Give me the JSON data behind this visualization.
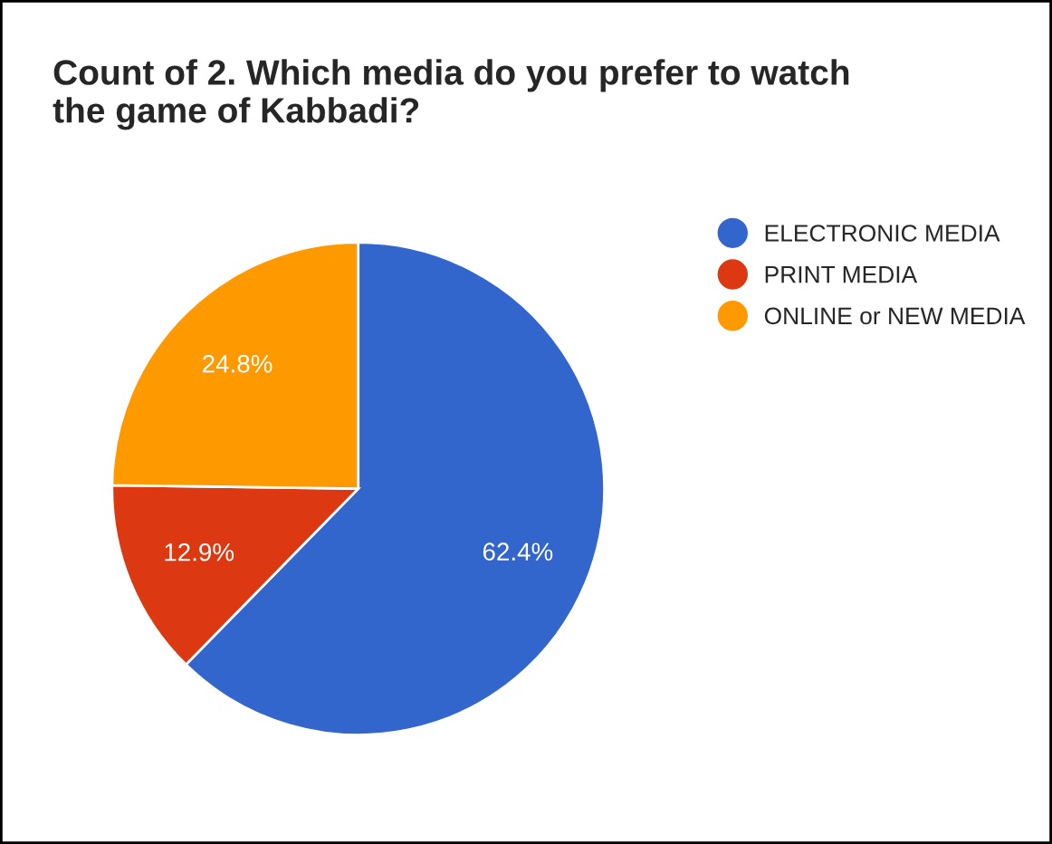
{
  "chart_data": {
    "type": "pie",
    "title": "Count of 2. Which media do you prefer to watch\nthe game of Kabbadi?",
    "categories": [
      "ELECTRONIC MEDIA",
      "PRINT MEDIA",
      "ONLINE or NEW MEDIA"
    ],
    "values": [
      62.4,
      12.9,
      24.8
    ],
    "colors": [
      "#3366cc",
      "#dc3912",
      "#ff9900"
    ],
    "value_labels": [
      "62.4%",
      "12.9%",
      "24.8%"
    ],
    "legend": "top right"
  }
}
